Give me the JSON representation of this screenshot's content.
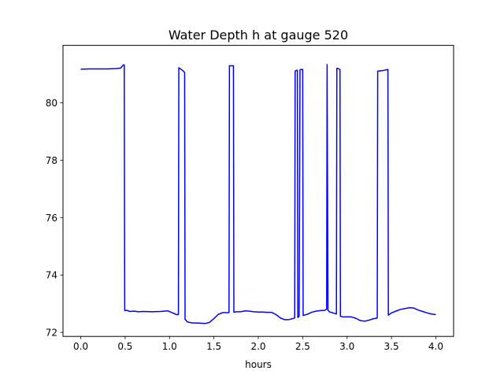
{
  "chart_data": {
    "type": "line",
    "title": "Water Depth h at gauge 520",
    "xlabel": "hours",
    "ylabel": "",
    "xlim": [
      -0.2,
      4.2
    ],
    "ylim": [
      71.86,
      82.0
    ],
    "xticks": [
      0.0,
      0.5,
      1.0,
      1.5,
      2.0,
      2.5,
      3.0,
      3.5,
      4.0
    ],
    "xtick_labels": [
      "0.0",
      "0.5",
      "1.0",
      "1.5",
      "2.0",
      "2.5",
      "3.0",
      "3.5",
      "4.0"
    ],
    "yticks": [
      72,
      74,
      76,
      78,
      80
    ],
    "ytick_labels": [
      "72",
      "74",
      "76",
      "78",
      "80"
    ],
    "grid": false,
    "series": [
      {
        "color": "#0000ff",
        "x": [
          0.0,
          0.1,
          0.2,
          0.3,
          0.4,
          0.45,
          0.48,
          0.49,
          0.495,
          0.52,
          0.55,
          0.6,
          0.65,
          0.7,
          0.8,
          0.9,
          0.98,
          1.02,
          1.08,
          1.1,
          1.105,
          1.15,
          1.17,
          1.175,
          1.2,
          1.25,
          1.3,
          1.35,
          1.4,
          1.45,
          1.5,
          1.55,
          1.6,
          1.65,
          1.67,
          1.675,
          1.7,
          1.72,
          1.725,
          1.75,
          1.8,
          1.85,
          1.9,
          1.95,
          2.0,
          2.05,
          2.1,
          2.15,
          2.2,
          2.25,
          2.3,
          2.35,
          2.4,
          2.41,
          2.415,
          2.43,
          2.44,
          2.445,
          2.46,
          2.47,
          2.475,
          2.49,
          2.5,
          2.505,
          2.55,
          2.6,
          2.65,
          2.7,
          2.75,
          2.77,
          2.775,
          2.785,
          2.8,
          2.85,
          2.88,
          2.885,
          2.9,
          2.92,
          2.925,
          2.95,
          3.0,
          3.05,
          3.1,
          3.15,
          3.2,
          3.25,
          3.3,
          3.34,
          3.345,
          3.4,
          3.46,
          3.465,
          3.5,
          3.55,
          3.6,
          3.65,
          3.7,
          3.75,
          3.8,
          3.85,
          3.9,
          3.95,
          4.0
        ],
        "y": [
          81.17,
          81.18,
          81.18,
          81.18,
          81.19,
          81.21,
          81.32,
          81.32,
          72.76,
          72.77,
          72.73,
          72.74,
          72.72,
          72.73,
          72.72,
          72.73,
          72.75,
          72.7,
          72.62,
          72.62,
          81.22,
          81.12,
          81.06,
          72.46,
          72.37,
          72.33,
          72.33,
          72.32,
          72.31,
          72.35,
          72.48,
          72.63,
          72.69,
          72.69,
          72.69,
          81.29,
          81.29,
          81.29,
          72.7,
          72.72,
          72.72,
          72.75,
          72.74,
          72.72,
          72.71,
          72.71,
          72.7,
          72.7,
          72.62,
          72.5,
          72.44,
          72.45,
          72.49,
          72.51,
          81.1,
          81.13,
          81.13,
          72.52,
          72.56,
          81.15,
          81.16,
          81.16,
          81.16,
          72.59,
          72.63,
          72.7,
          72.74,
          72.76,
          72.77,
          72.81,
          81.33,
          72.77,
          72.72,
          72.67,
          72.64,
          81.2,
          81.19,
          81.16,
          72.56,
          72.54,
          72.54,
          72.54,
          72.49,
          72.41,
          72.39,
          72.43,
          72.48,
          72.5,
          81.1,
          81.12,
          81.16,
          72.6,
          72.68,
          72.74,
          72.8,
          72.83,
          72.86,
          72.85,
          72.78,
          72.73,
          72.68,
          72.64,
          72.62
        ]
      }
    ]
  }
}
